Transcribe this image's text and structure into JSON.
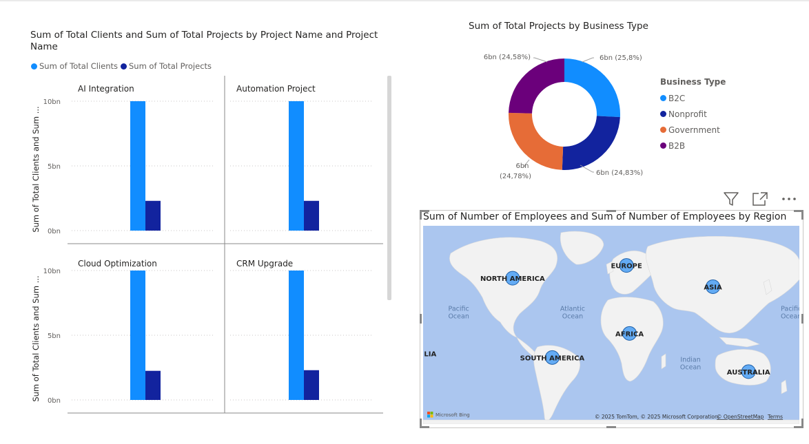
{
  "bar_visual": {
    "title": "Sum of Total Clients and Sum of Total Projects by Project Name and Project Name",
    "legend": [
      "Sum of Total Clients",
      "Sum of Total Projects"
    ]
  },
  "donut_visual": {
    "title": "Sum of Total Projects by Business Type",
    "legend_title": "Business Type"
  },
  "map_visual": {
    "title": "Sum of Number of Employees and Sum of Number of Employees by Region",
    "bing_label": "Microsoft Bing",
    "copyright": "© 2025 TomTom, © 2025 Microsoft Corporation,",
    "osm_link": "© OpenStreetMap",
    "terms_link": "Terms"
  },
  "colors": {
    "clients": "#118dff",
    "projects": "#12239e",
    "b2c": "#118dff",
    "nonprofit": "#12239e",
    "government": "#e66c37",
    "b2b": "#6b007b",
    "bubble_fill": "#4a9ff5",
    "bubble_stroke": "#1e5fa8"
  },
  "chart_data": [
    {
      "type": "bar",
      "subtype": "small-multiples-clustered-column",
      "title": "Sum of Total Clients and Sum of Total Projects by Project Name and Project Name",
      "ylabel": "Sum of Total Clients and Sum ...",
      "y_ticks": [
        "0bn",
        "5bn",
        "10bn"
      ],
      "ylim": [
        0,
        10
      ],
      "unit": "bn",
      "series_names": [
        "Sum of Total Clients",
        "Sum of Total Projects"
      ],
      "panels": [
        {
          "name": "AI Integration",
          "values": [
            10,
            2.3
          ]
        },
        {
          "name": "Automation Project",
          "values": [
            10,
            2.3
          ]
        },
        {
          "name": "Cloud Optimization",
          "values": [
            10,
            2.25
          ]
        },
        {
          "name": "CRM Upgrade",
          "values": [
            10,
            2.3
          ]
        }
      ]
    },
    {
      "type": "pie",
      "subtype": "donut",
      "title": "Sum of Total Projects by Business Type",
      "legend_title": "Business Type",
      "legend_position": "right",
      "slices": [
        {
          "name": "B2C",
          "label_value": "6bn",
          "label_pct": "(25,8%)",
          "percent": 25.8,
          "color": "#118dff"
        },
        {
          "name": "Nonprofit",
          "label_value": "6bn",
          "label_pct": "(24,83%)",
          "percent": 24.83,
          "color": "#12239e"
        },
        {
          "name": "Government",
          "label_value": "6bn",
          "label_pct": "(24,78%)",
          "percent": 24.78,
          "color": "#e66c37"
        },
        {
          "name": "B2B",
          "label_value": "6bn",
          "label_pct": "(24,58%)",
          "percent": 24.58,
          "color": "#6b007b"
        }
      ]
    },
    {
      "type": "scatter",
      "subtype": "bubble-map",
      "title": "Sum of Number of Employees and Sum of Number of Employees by Region",
      "regions": [
        {
          "name": "NORTH AMERICA",
          "lon": -97,
          "lat": 41,
          "show_label": true
        },
        {
          "name": "EUROPE",
          "lon": 15,
          "lat": 50,
          "show_label": true
        },
        {
          "name": "ASIA",
          "lon": 100,
          "lat": 35,
          "show_label": true
        },
        {
          "name": "AFRICA",
          "lon": 18,
          "lat": 2,
          "show_label": true
        },
        {
          "name": "SOUTH AMERICA",
          "lon": -58,
          "lat": -15,
          "show_label": true
        },
        {
          "name": "AUSTRALIA",
          "lon": 135,
          "lat": -25,
          "show_label": true
        }
      ],
      "oceans": [
        {
          "lines": [
            "Pacific",
            "Ocean"
          ],
          "lon": -150,
          "lat": 18
        },
        {
          "lines": [
            "Atlantic",
            "Ocean"
          ],
          "lon": -38,
          "lat": 18
        },
        {
          "lines": [
            "Indian",
            "Ocean"
          ],
          "lon": 78,
          "lat": -18
        },
        {
          "lines": [
            "Pacific",
            "Ocean"
          ],
          "lon": 177,
          "lat": 18
        }
      ],
      "edge_labels": [
        {
          "text": "LIA",
          "lon": -178,
          "lat": -14
        }
      ]
    }
  ]
}
